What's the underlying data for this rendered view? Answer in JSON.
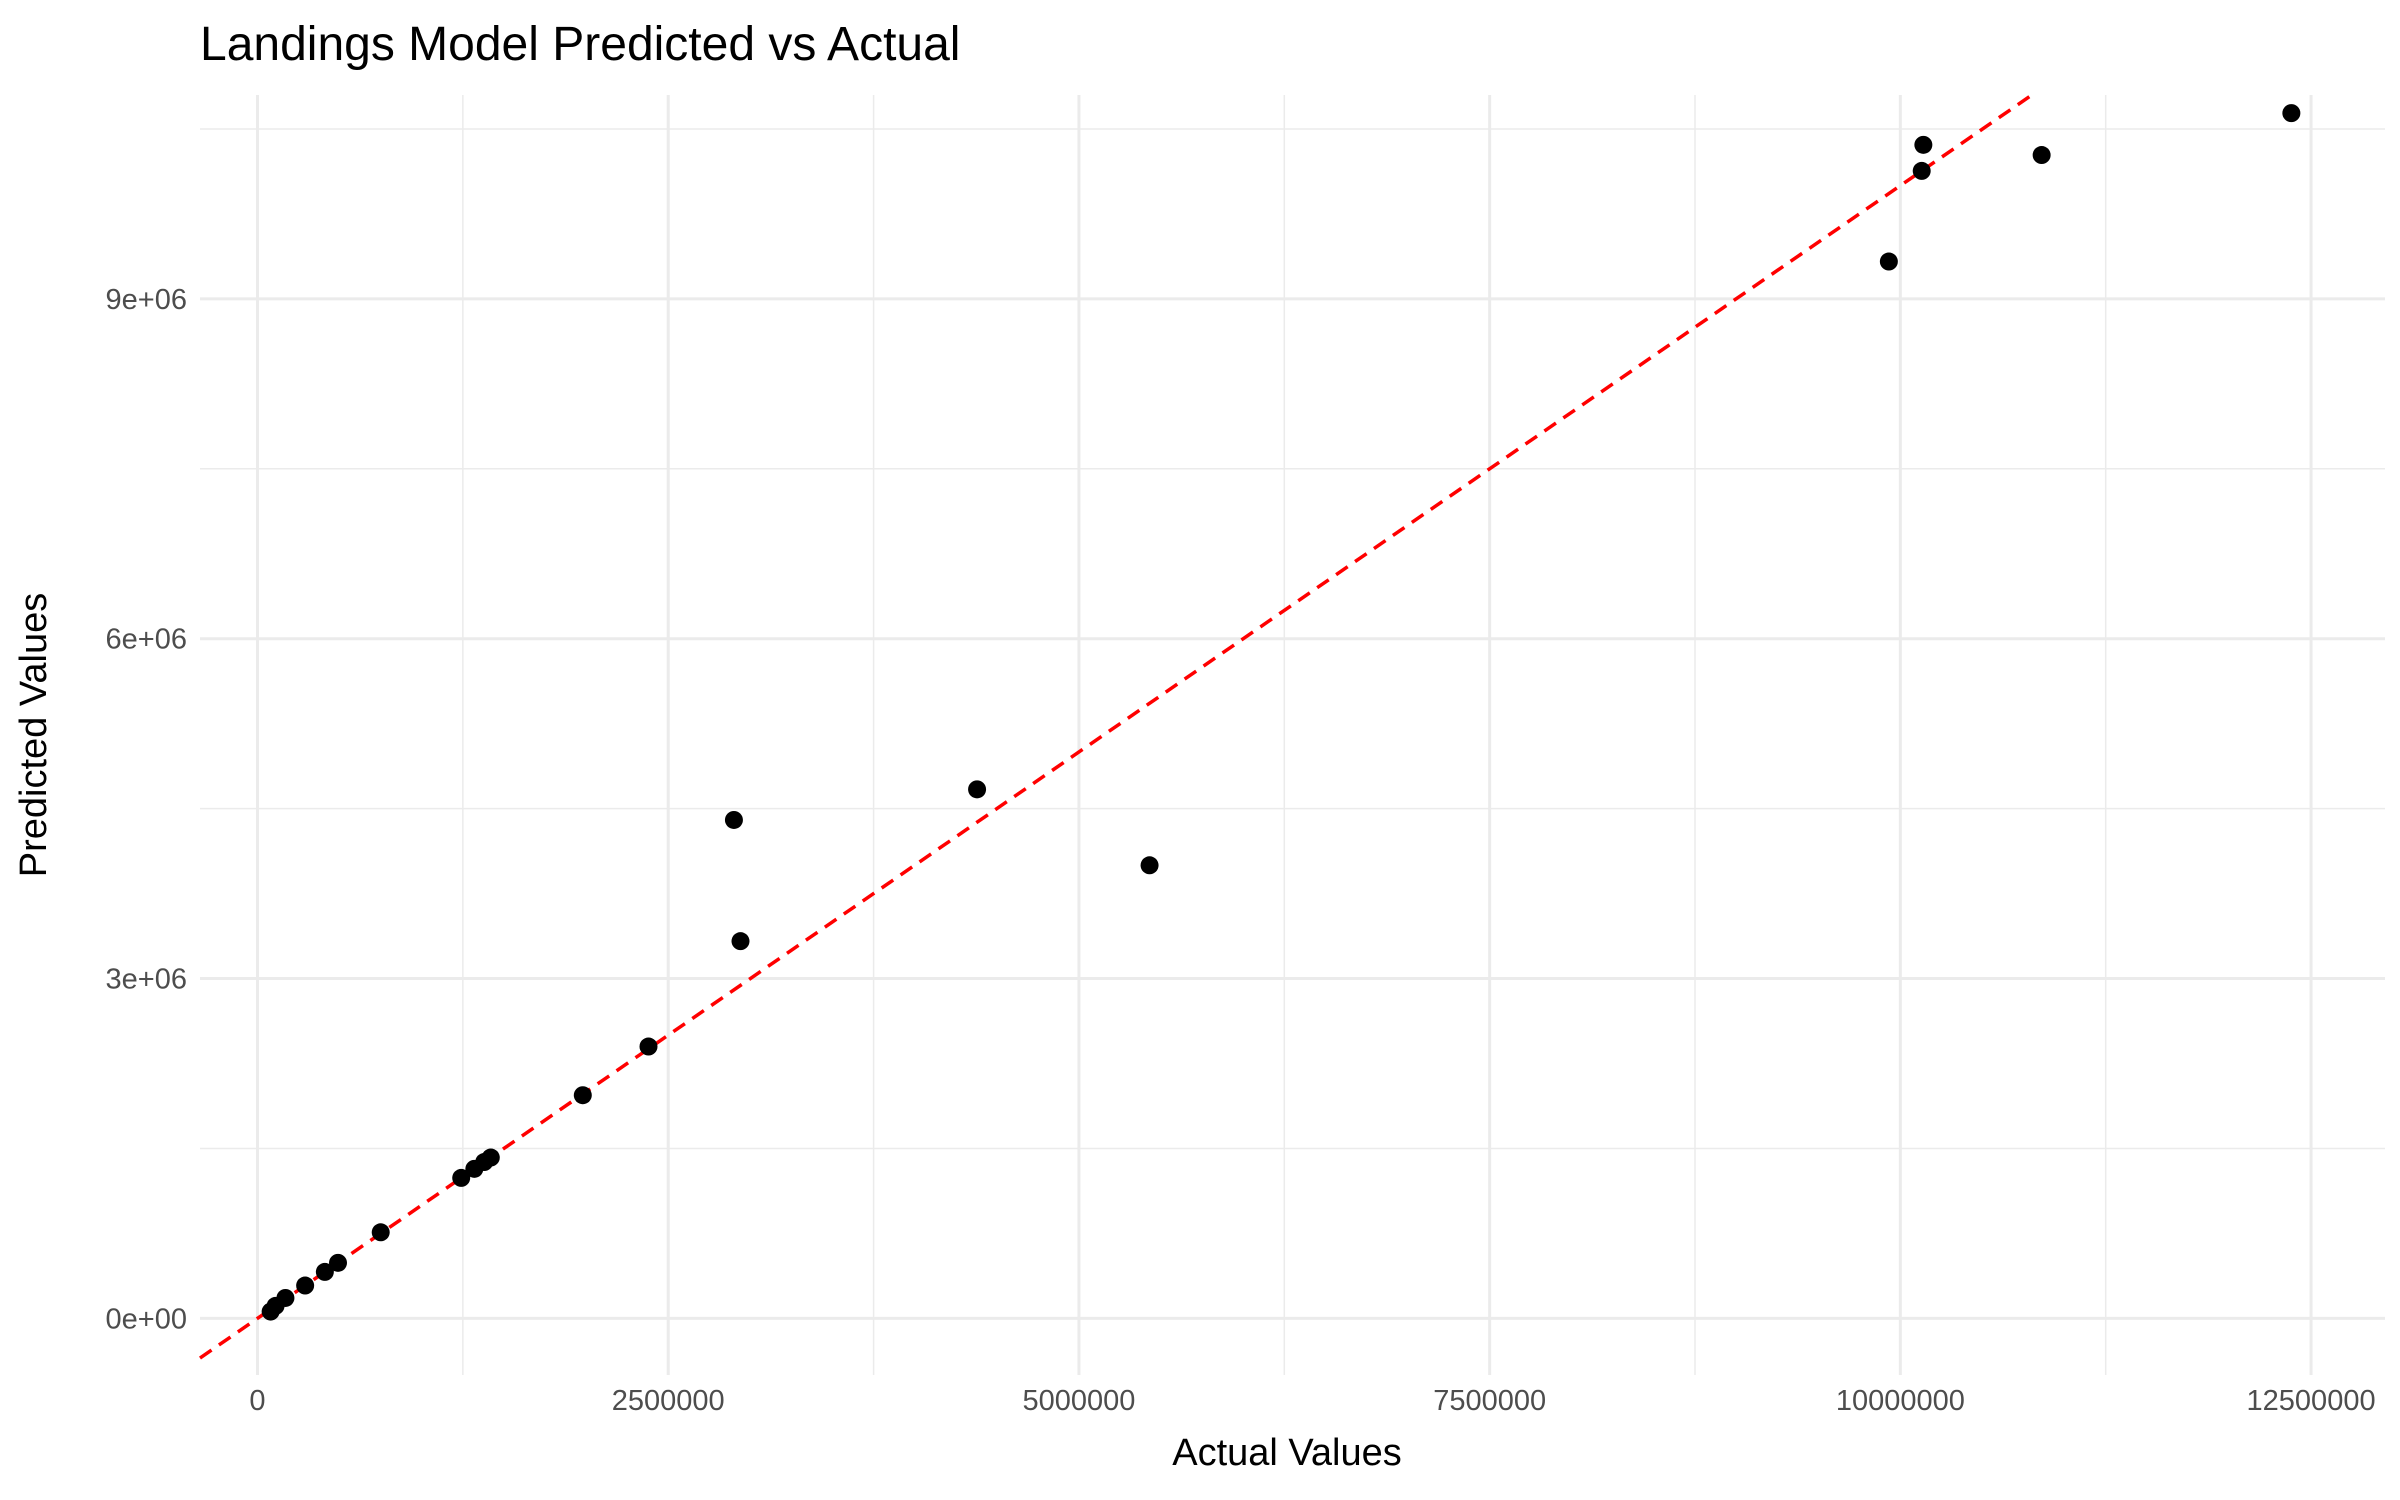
{
  "chart_data": {
    "type": "scatter",
    "title": "Landings Model Predicted vs Actual",
    "xlabel": "Actual Values",
    "ylabel": "Predicted Values",
    "xlim": [
      -350000,
      12950000
    ],
    "ylim": [
      -500000,
      10800000
    ],
    "x_ticks": [
      0,
      2500000,
      5000000,
      7500000,
      10000000,
      12500000
    ],
    "x_tick_labels": [
      "0",
      "2500000",
      "5000000",
      "7500000",
      "10000000",
      "12500000"
    ],
    "y_ticks": [
      0,
      3000000,
      6000000,
      9000000
    ],
    "y_tick_labels": [
      "0e+00",
      "3e+06",
      "6e+06",
      "9e+06"
    ],
    "grid": true,
    "legend": "none",
    "point_color": "#000000",
    "reference_line": {
      "slope": 1,
      "intercept": 0,
      "color": "#ff0000",
      "style": "dashed"
    },
    "points": [
      {
        "x": 80000,
        "y": 60000
      },
      {
        "x": 110000,
        "y": 110000
      },
      {
        "x": 170000,
        "y": 180000
      },
      {
        "x": 290000,
        "y": 290000
      },
      {
        "x": 410000,
        "y": 410000
      },
      {
        "x": 490000,
        "y": 490000
      },
      {
        "x": 750000,
        "y": 760000
      },
      {
        "x": 1240000,
        "y": 1240000
      },
      {
        "x": 1320000,
        "y": 1320000
      },
      {
        "x": 1380000,
        "y": 1380000
      },
      {
        "x": 1420000,
        "y": 1420000
      },
      {
        "x": 1980000,
        "y": 1970000
      },
      {
        "x": 2380000,
        "y": 2400000
      },
      {
        "x": 2900000,
        "y": 4400000
      },
      {
        "x": 2940000,
        "y": 3330000
      },
      {
        "x": 4380000,
        "y": 4670000
      },
      {
        "x": 5430000,
        "y": 4000000
      },
      {
        "x": 9930000,
        "y": 9330000
      },
      {
        "x": 10130000,
        "y": 10130000
      },
      {
        "x": 10140000,
        "y": 10360000
      },
      {
        "x": 10860000,
        "y": 10270000
      },
      {
        "x": 12380000,
        "y": 10640000
      }
    ]
  }
}
